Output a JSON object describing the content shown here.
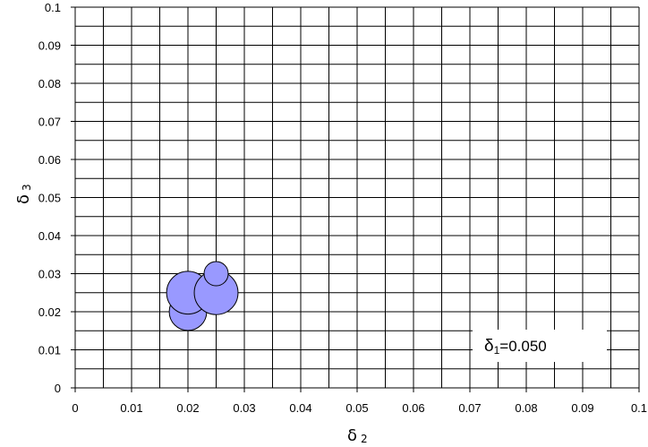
{
  "chart_data": {
    "type": "scatter",
    "subtype": "bubble",
    "title": "",
    "xlabel": {
      "main": "δ",
      "sub": "2"
    },
    "ylabel": {
      "main": "δ",
      "sub": "3"
    },
    "xlim": [
      0,
      0.1
    ],
    "ylim": [
      0,
      0.1
    ],
    "x_ticks": [
      "0",
      "0.01",
      "0.02",
      "0.03",
      "0.04",
      "0.05",
      "0.06",
      "0.07",
      "0.08",
      "0.09",
      "0.1"
    ],
    "y_ticks": [
      "0",
      "0.01",
      "0.02",
      "0.03",
      "0.04",
      "0.05",
      "0.06",
      "0.07",
      "0.08",
      "0.09",
      "0.1"
    ],
    "grid": true,
    "minor_grid_step": 0.005,
    "legend": "none",
    "annotation": {
      "main": "δ",
      "sub": "1",
      "value": "=0.050",
      "position": "bottom-right"
    },
    "bubble_color": "#9999ff",
    "bubble_edge_color": "#000000",
    "series": [
      {
        "points": [
          {
            "x": 0.02,
            "y": 0.02,
            "size": 0.6
          },
          {
            "x": 0.02,
            "y": 0.025,
            "size": 0.78
          },
          {
            "x": 0.025,
            "y": 0.025,
            "size": 0.82
          },
          {
            "x": 0.025,
            "y": 0.03,
            "size": 0.25
          }
        ]
      }
    ]
  }
}
